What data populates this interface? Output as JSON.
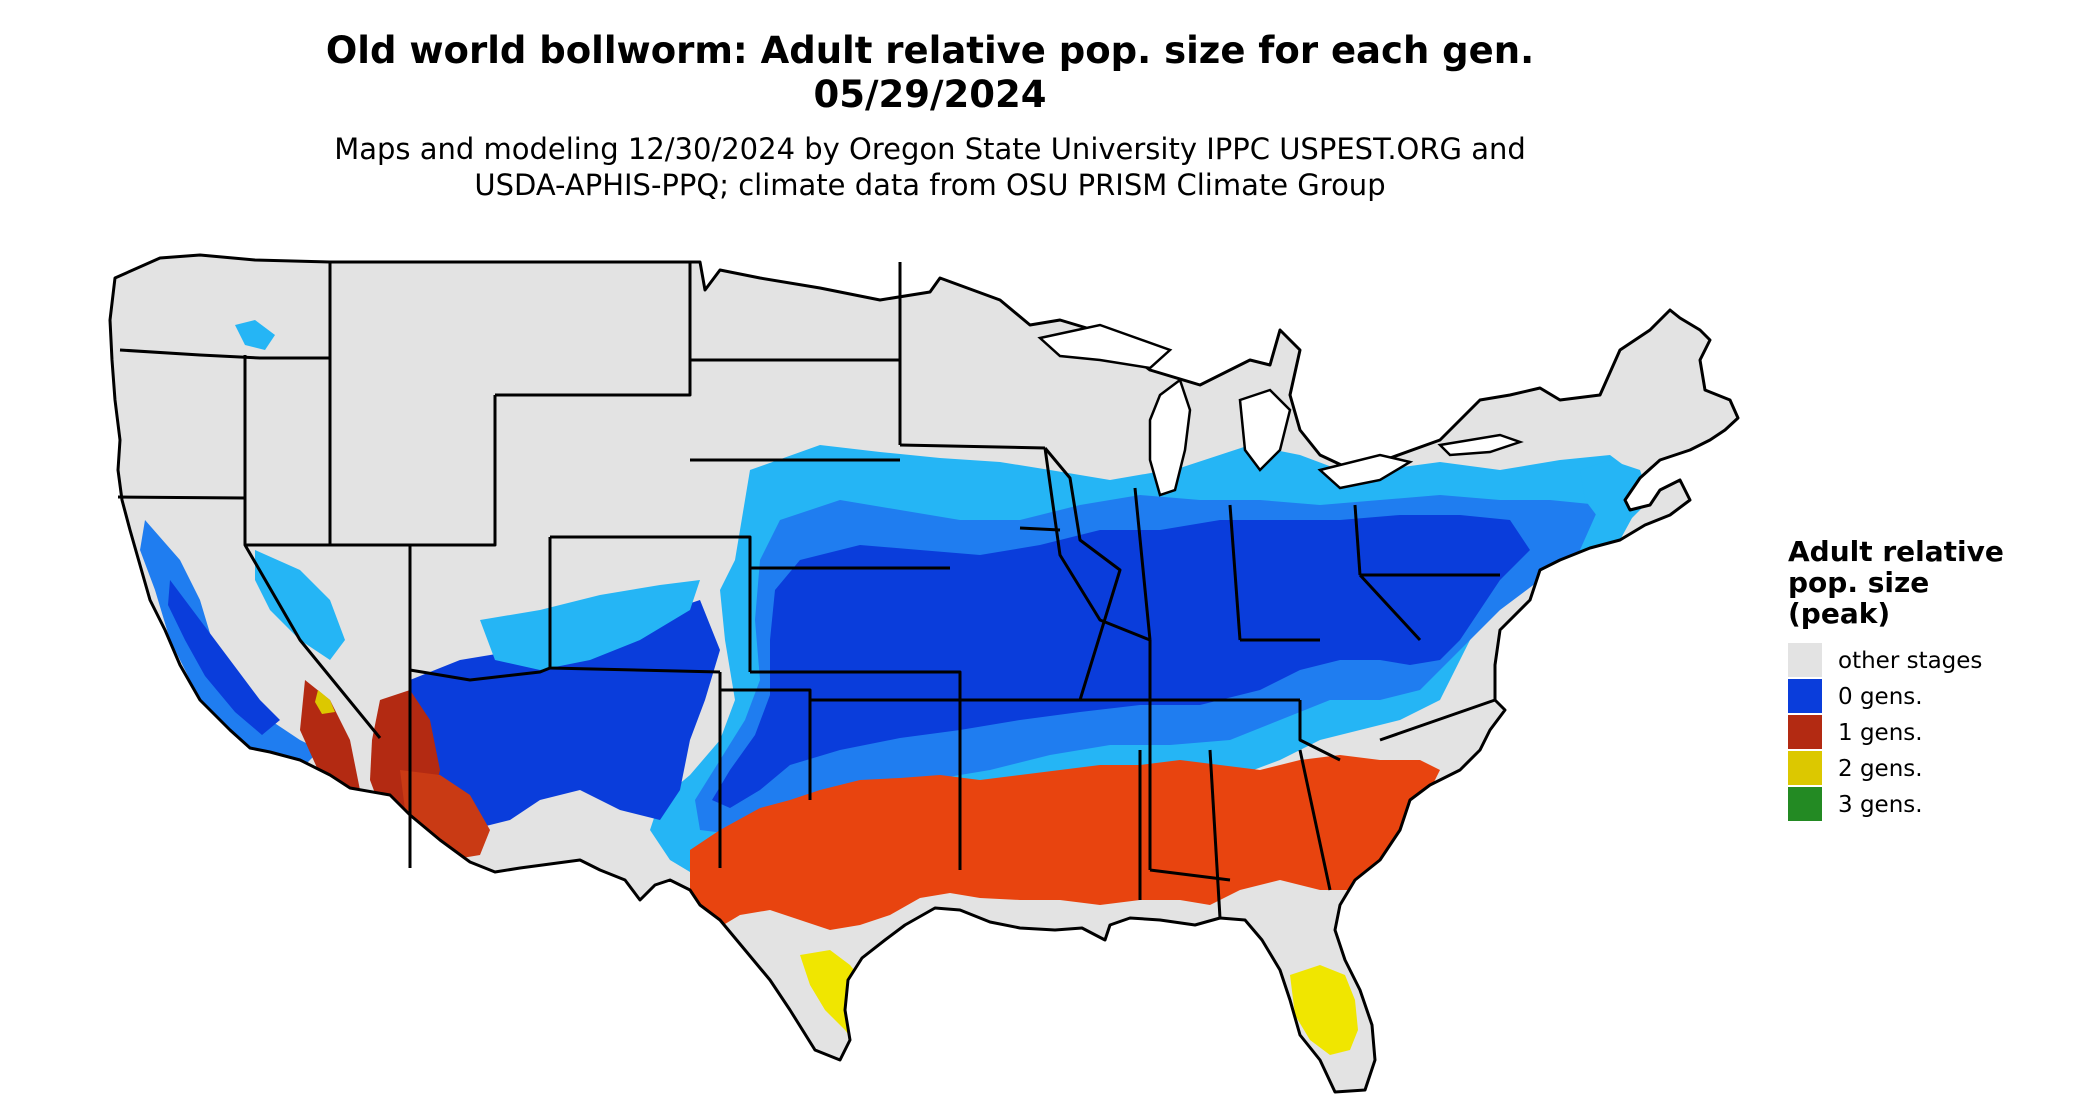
{
  "title": {
    "line1": "Old world bollworm: Adult relative pop. size for each gen.",
    "line2": "05/29/2024"
  },
  "subtitle": {
    "line1": "Maps and modeling 12/30/2024 by Oregon State University IPPC USPEST.ORG and",
    "line2": "USDA-APHIS-PPQ; climate data from OSU PRISM Climate Group"
  },
  "legend": {
    "title_lines": [
      "Adult relative",
      "pop. size",
      "(peak)"
    ],
    "items": [
      {
        "label": "other stages",
        "color": "#e3e3e3"
      },
      {
        "label": "0 gens.",
        "color": "#0a3ddb"
      },
      {
        "label": "1 gens.",
        "color": "#b32a12"
      },
      {
        "label": "2 gens.",
        "color": "#dcc800"
      },
      {
        "label": "3 gens.",
        "color": "#238a23"
      }
    ]
  },
  "colors": {
    "background_land": "#e3e3e3",
    "blue_light": "#25b5f5",
    "blue_mid": "#1f7df0",
    "blue_dark": "#0a3ddb",
    "red_orange": "#e8440f",
    "red_dark": "#b32a12",
    "yellow": "#f0e600",
    "green": "#2c9b2c",
    "border": "#000000"
  }
}
